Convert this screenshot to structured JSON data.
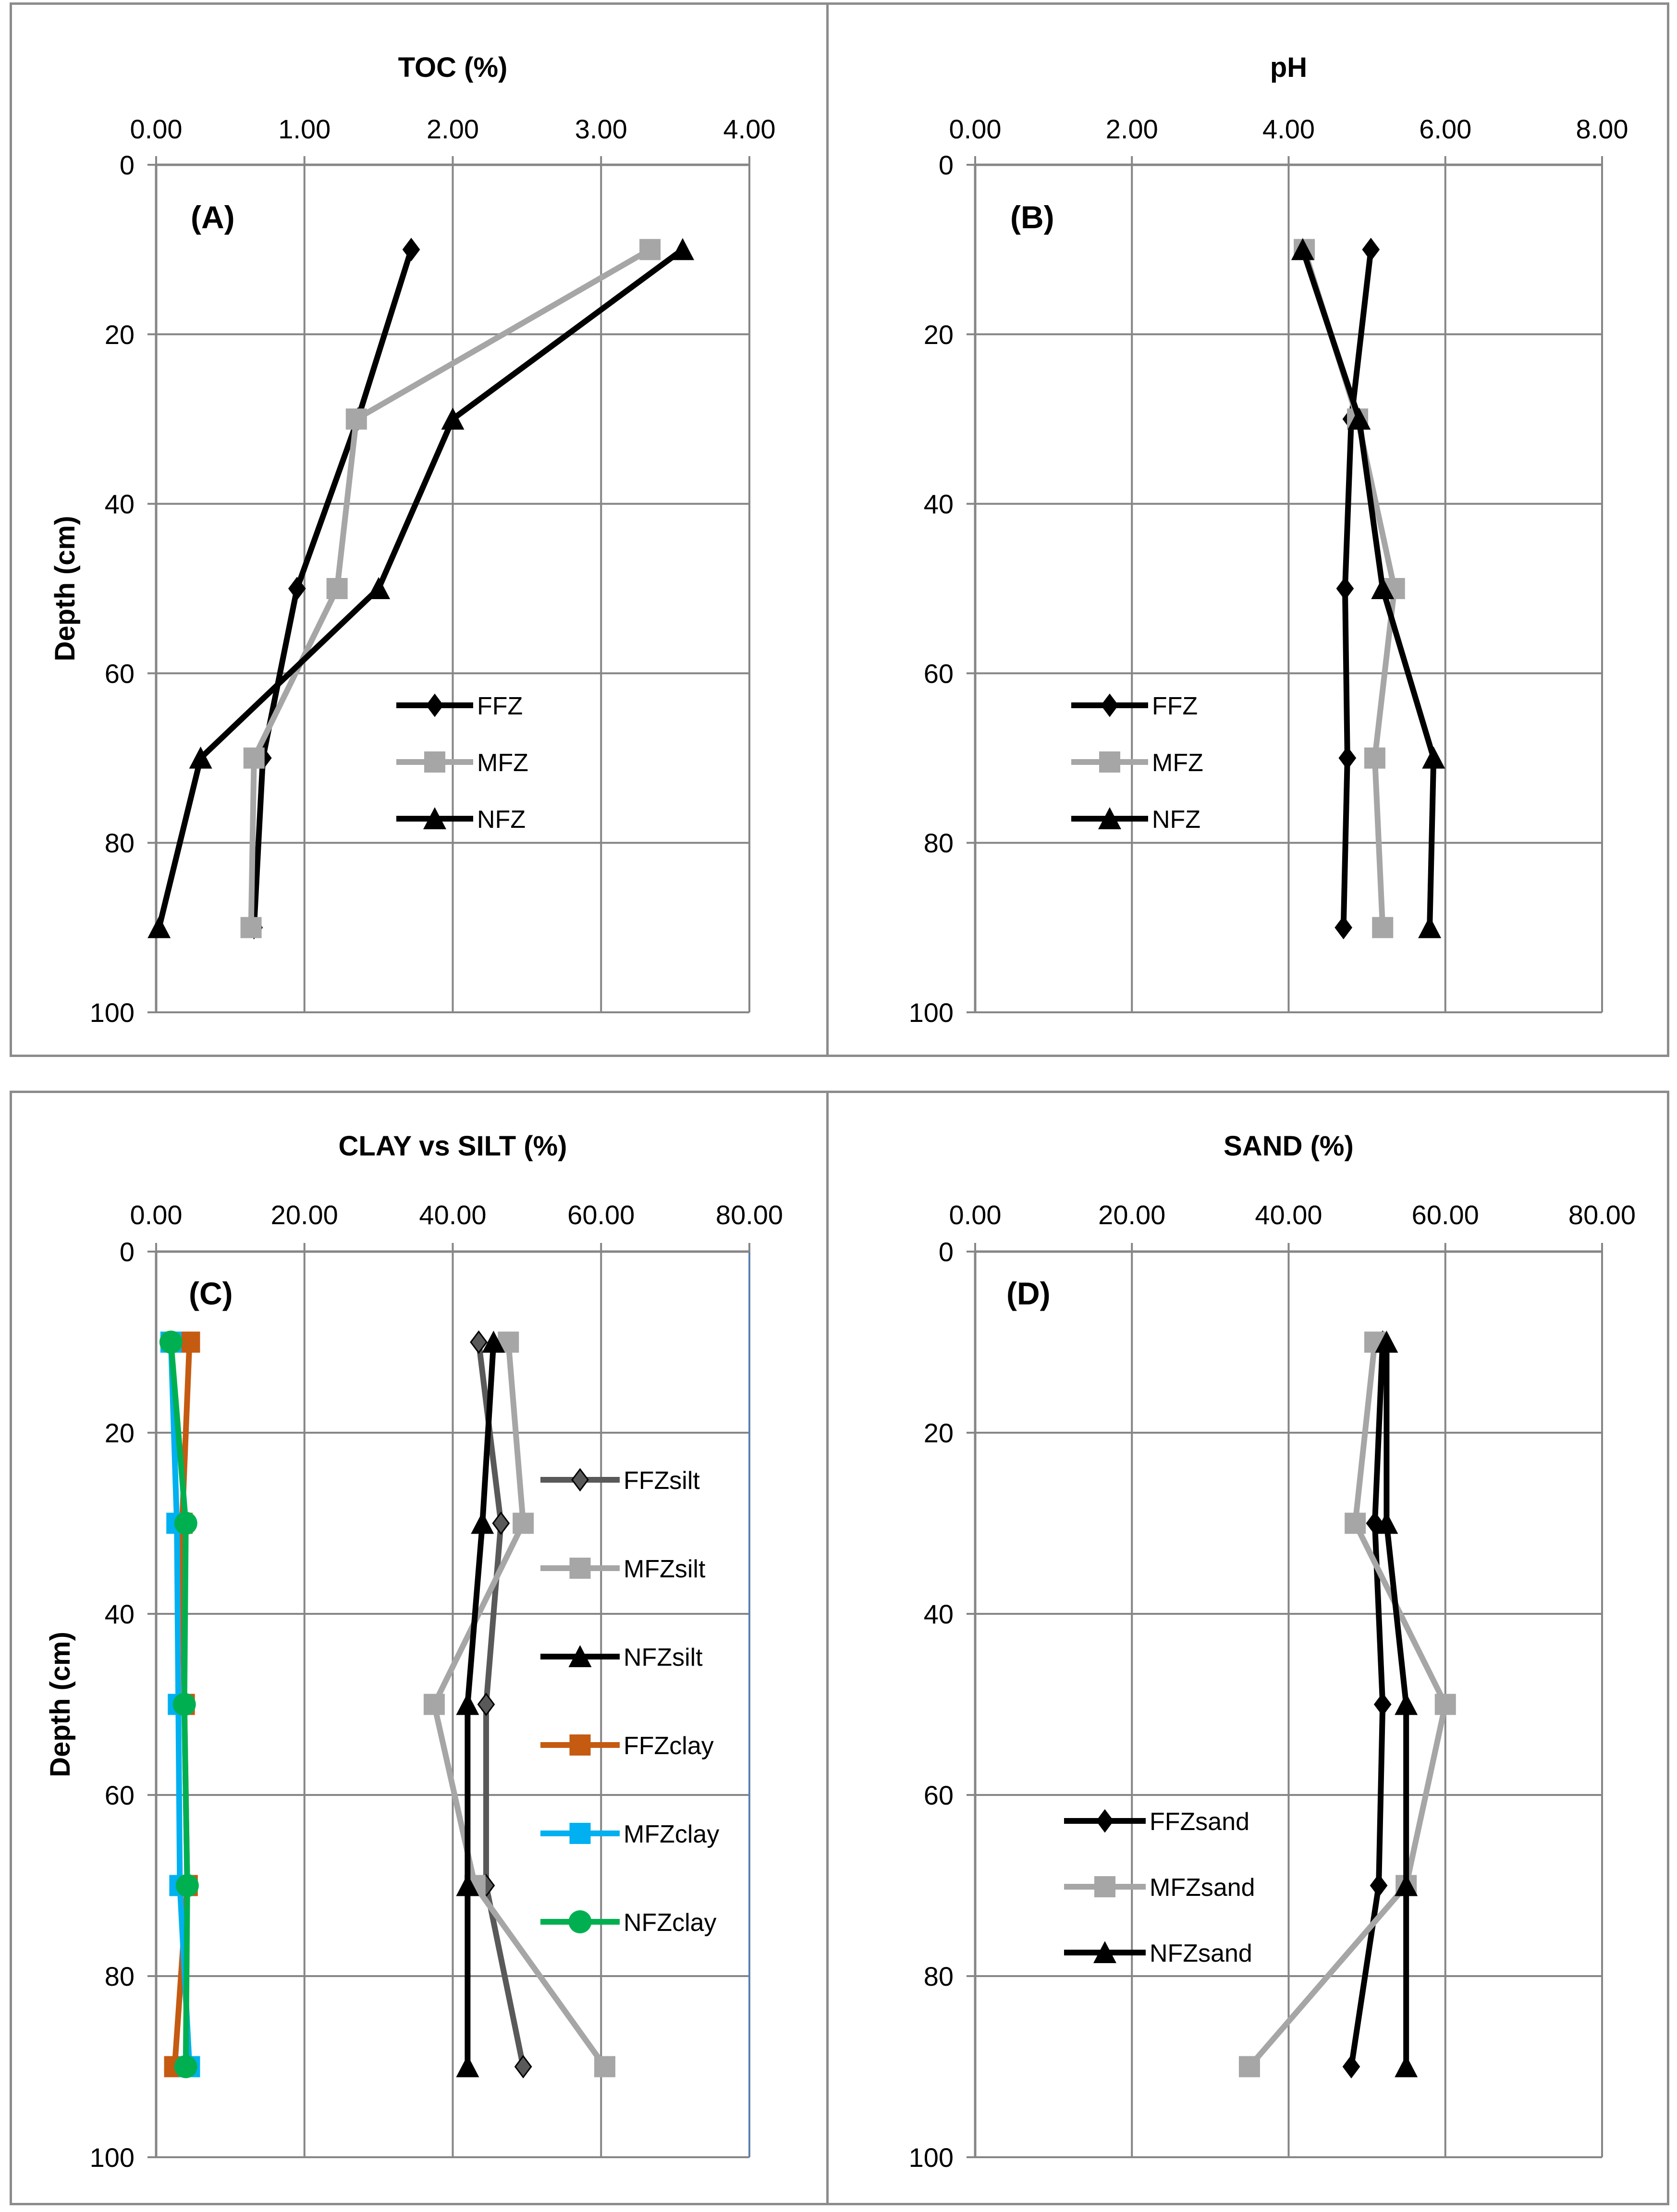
{
  "chart_data": [
    {
      "type": "line",
      "panel_label": "(A)",
      "title": "TOC (%)",
      "ylabel": "Depth  (cm)",
      "xlim": [
        0,
        4
      ],
      "ylim": [
        0,
        100
      ],
      "x_ticks": [
        "0.00",
        "1.00",
        "2.00",
        "3.00",
        "4.00"
      ],
      "y_ticks": [
        "0",
        "20",
        "40",
        "60",
        "80",
        "100"
      ],
      "depth": [
        10,
        30,
        50,
        70,
        90
      ],
      "series": [
        {
          "name": "FFZ",
          "marker": "diamond",
          "color": "#000000",
          "values": [
            1.72,
            1.36,
            0.95,
            0.72,
            0.66
          ]
        },
        {
          "name": "MFZ",
          "marker": "square",
          "color": "#a6a6a6",
          "values": [
            3.33,
            1.35,
            1.22,
            0.66,
            0.64
          ]
        },
        {
          "name": "NFZ",
          "marker": "triangle",
          "color": "#000000",
          "values": [
            3.55,
            2.0,
            1.5,
            0.3,
            0.02
          ]
        }
      ]
    },
    {
      "type": "line",
      "panel_label": "(B)",
      "title": "pH",
      "ylabel": "",
      "xlim": [
        0,
        8
      ],
      "ylim": [
        0,
        100
      ],
      "x_ticks": [
        "0.00",
        "2.00",
        "4.00",
        "6.00",
        "8.00"
      ],
      "y_ticks": [
        "0",
        "20",
        "40",
        "60",
        "80",
        "100"
      ],
      "depth": [
        10,
        30,
        50,
        70,
        90
      ],
      "series": [
        {
          "name": "FFZ",
          "marker": "diamond",
          "color": "#000000",
          "values": [
            5.05,
            4.8,
            4.72,
            4.75,
            4.7
          ]
        },
        {
          "name": "MFZ",
          "marker": "square",
          "color": "#a6a6a6",
          "values": [
            4.2,
            4.88,
            5.35,
            5.1,
            5.2
          ]
        },
        {
          "name": "NFZ",
          "marker": "triangle",
          "color": "#000000",
          "values": [
            4.18,
            4.9,
            5.2,
            5.85,
            5.8
          ]
        }
      ]
    },
    {
      "type": "line",
      "panel_label": "(C)",
      "title": "CLAY vs SILT (%)",
      "ylabel": "Depth  (cm)",
      "xlim": [
        0,
        80
      ],
      "ylim": [
        0,
        100
      ],
      "x_ticks": [
        "0.00",
        "20.00",
        "40.00",
        "60.00",
        "80.00"
      ],
      "y_ticks": [
        "0",
        "20",
        "40",
        "60",
        "80",
        "100"
      ],
      "depth": [
        10,
        30,
        50,
        70,
        90
      ],
      "series": [
        {
          "name": "FFZsilt",
          "marker": "diamond",
          "color": "#595959",
          "values": [
            43.5,
            46.5,
            44.5,
            44.5,
            49.5
          ]
        },
        {
          "name": "MFZsilt",
          "marker": "square",
          "color": "#a6a6a6",
          "values": [
            47.5,
            49.5,
            37.5,
            43.0,
            60.5
          ]
        },
        {
          "name": "NFZsilt",
          "marker": "triangle",
          "color": "#000000",
          "values": [
            45.5,
            44.0,
            42.0,
            42.0,
            42.0
          ]
        },
        {
          "name": "FFZclay",
          "marker": "square",
          "color": "#c55a11",
          "values": [
            4.5,
            3.5,
            3.8,
            4.2,
            2.5
          ]
        },
        {
          "name": "MFZclay",
          "marker": "square",
          "color": "#00b0f0",
          "values": [
            2.0,
            2.8,
            3.0,
            3.2,
            4.5
          ]
        },
        {
          "name": "NFZclay",
          "marker": "circle",
          "color": "#00b050",
          "values": [
            2.0,
            4.0,
            3.8,
            4.2,
            4.0
          ]
        }
      ]
    },
    {
      "type": "line",
      "panel_label": "(D)",
      "title": "SAND (%)",
      "ylabel": "",
      "xlim": [
        0,
        80
      ],
      "ylim": [
        0,
        100
      ],
      "x_ticks": [
        "0.00",
        "20.00",
        "40.00",
        "60.00",
        "80.00"
      ],
      "y_ticks": [
        "0",
        "20",
        "40",
        "60",
        "80",
        "100"
      ],
      "depth": [
        10,
        30,
        50,
        70,
        90
      ],
      "series": [
        {
          "name": "FFZsand",
          "marker": "diamond",
          "color": "#000000",
          "values": [
            52.0,
            51.0,
            52.0,
            51.5,
            48.0
          ]
        },
        {
          "name": "MFZsand",
          "marker": "square",
          "color": "#a6a6a6",
          "values": [
            51.0,
            48.5,
            60.0,
            55.0,
            35.0
          ]
        },
        {
          "name": "NFZsand",
          "marker": "triangle",
          "color": "#000000",
          "values": [
            52.5,
            52.5,
            55.0,
            55.0,
            55.0
          ]
        }
      ]
    }
  ]
}
